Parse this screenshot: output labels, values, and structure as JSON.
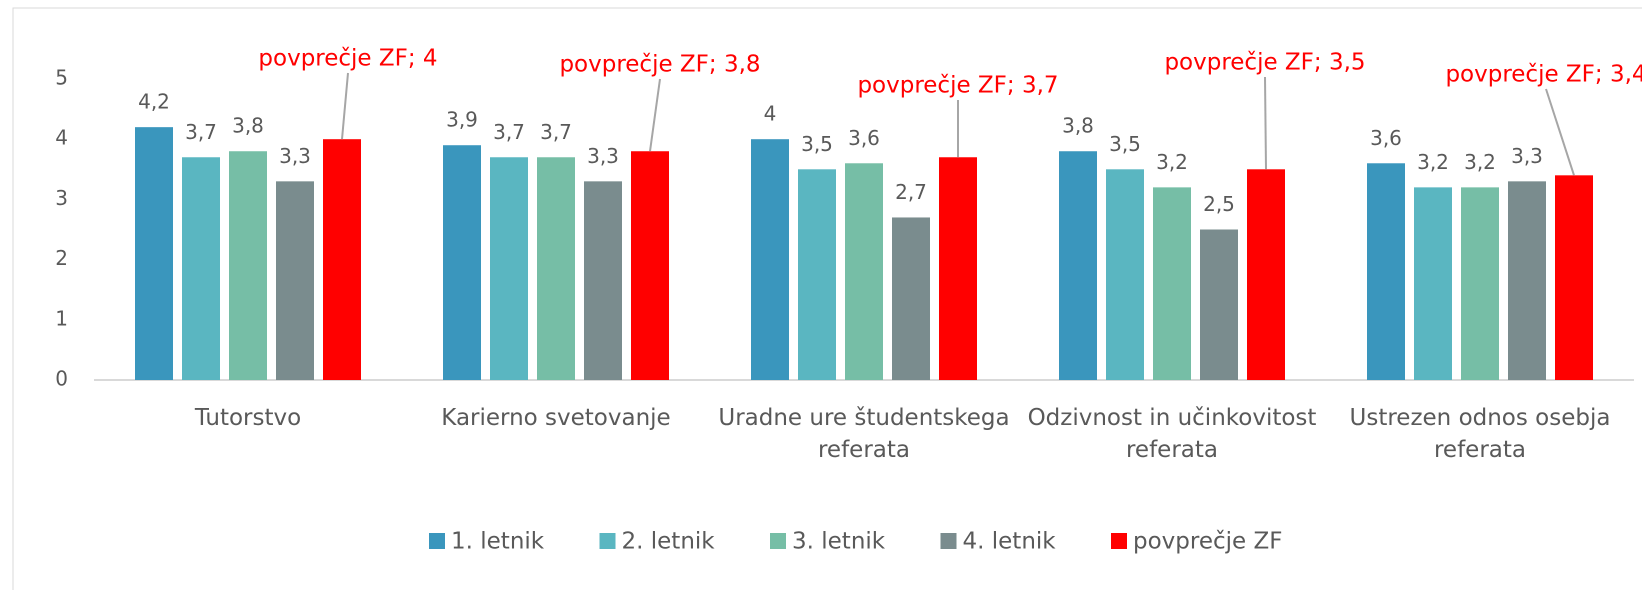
{
  "chart_data": {
    "type": "bar",
    "categories": [
      "Tutorstvo",
      "Karierno svetovanje",
      "Uradne ure študentskega referata",
      "Odzivnost in učinkovitost referata",
      "Ustrezen odnos osebja referata"
    ],
    "series": [
      {
        "name": "1. letnik",
        "color": "#3a96bd",
        "values": [
          4.2,
          3.9,
          4,
          3.8,
          3.6
        ],
        "value_labels": [
          "4,2",
          "3,9",
          "4",
          "3,8",
          "3,6"
        ]
      },
      {
        "name": "2. letnik",
        "color": "#5ab6c1",
        "values": [
          3.7,
          3.7,
          3.5,
          3.5,
          3.2
        ],
        "value_labels": [
          "3,7",
          "3,7",
          "3,5",
          "3,5",
          "3,2"
        ]
      },
      {
        "name": "3. letnik",
        "color": "#76bea6",
        "values": [
          3.8,
          3.7,
          3.6,
          3.2,
          3.2
        ],
        "value_labels": [
          "3,8",
          "3,7",
          "3,6",
          "3,2",
          "3,2"
        ]
      },
      {
        "name": "4. letnik",
        "color": "#7a8c8e",
        "values": [
          3.3,
          3.3,
          2.7,
          2.5,
          3.3
        ],
        "value_labels": [
          "3,3",
          "3,3",
          "2,7",
          "2,5",
          "3,3"
        ]
      },
      {
        "name": "povprečje ZF",
        "color": "#ff0000",
        "values": [
          4,
          3.8,
          3.7,
          3.5,
          3.4
        ],
        "value_labels": [
          "povprečje ZF; 4",
          "povprečje ZF; 3,8",
          "povprečje ZF; 3,7",
          "povprečje ZF; 3,5",
          "povprečje ZF; 3,4"
        ]
      }
    ],
    "ylim": [
      0,
      5
    ],
    "yticks": [
      0,
      1,
      2,
      3,
      4,
      5
    ],
    "grid": false,
    "legend": "bottom"
  }
}
